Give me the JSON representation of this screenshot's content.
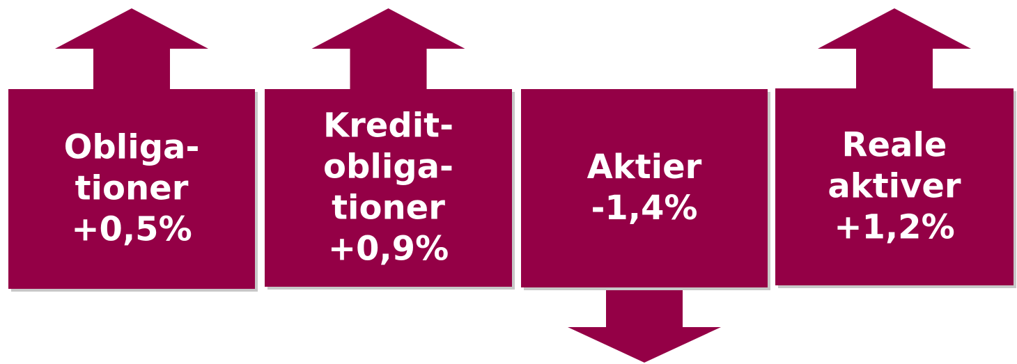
{
  "items": [
    {
      "lines": [
        "Obliga-",
        "tioner"
      ],
      "value": "+0,5%",
      "arrow": "up"
    },
    {
      "lines": [
        "Kredit-",
        "obliga-",
        "tioner"
      ],
      "value": "+0,9%",
      "arrow": "up"
    },
    {
      "lines": [
        "Aktier"
      ],
      "value": "-1,4%",
      "arrow": "down"
    },
    {
      "lines": [
        "Reale",
        "aktiver"
      ],
      "value": "+1,2%",
      "arrow": "up"
    }
  ]
}
